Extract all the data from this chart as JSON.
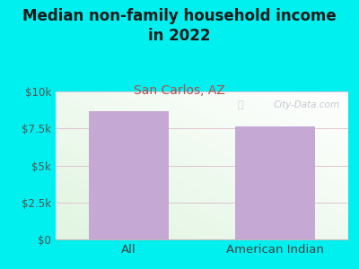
{
  "title": "Median non-family household income\nin 2022",
  "subtitle": "San Carlos, AZ",
  "categories": [
    "All",
    "American Indian"
  ],
  "values": [
    8650,
    7650
  ],
  "bar_color": "#c5a8d4",
  "background_color": "#00EFEF",
  "title_color": "#1a1a1a",
  "subtitle_color": "#b05050",
  "tick_label_color": "#555555",
  "xlabel_color": "#444444",
  "ylim": [
    0,
    10000
  ],
  "yticks": [
    0,
    2500,
    5000,
    7500,
    10000
  ],
  "ytick_labels": [
    "$0",
    "$2.5k",
    "$5k",
    "$7.5k",
    "$10k"
  ],
  "watermark": "City-Data.com",
  "title_fontsize": 12,
  "subtitle_fontsize": 10,
  "tick_fontsize": 8.5,
  "xlabel_fontsize": 9.5
}
